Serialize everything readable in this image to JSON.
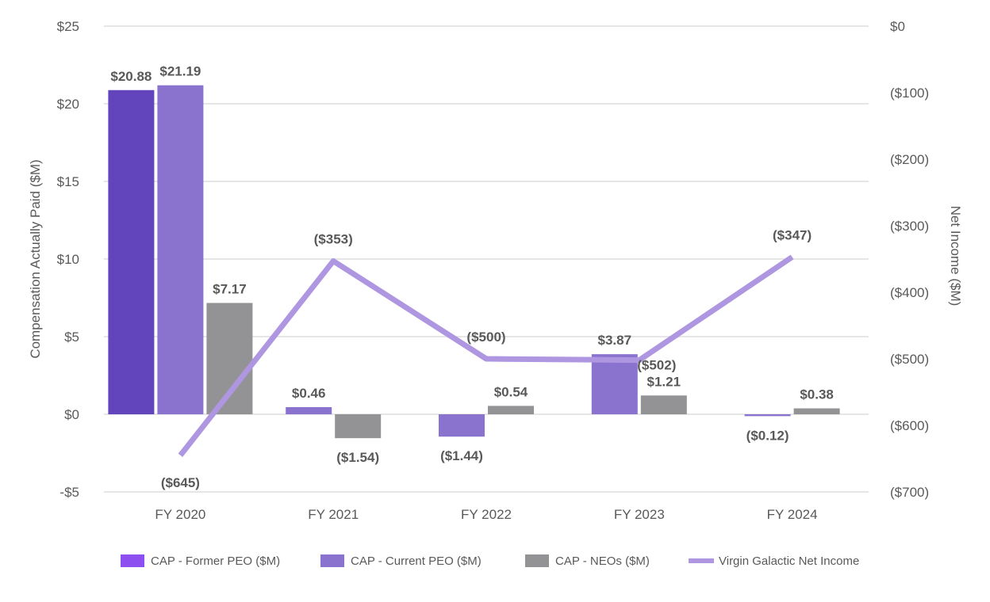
{
  "chart_data": {
    "type": "bar",
    "categories": [
      "FY 2020",
      "FY 2021",
      "FY 2022",
      "FY 2023",
      "FY 2024"
    ],
    "ylabel": "Compensation Actually Paid ($M)",
    "y2label": "Net Income ($M)",
    "ylim": [
      -5,
      25
    ],
    "y2lim": [
      -700,
      0
    ],
    "yticks": [
      {
        "value": 25,
        "label": "$25"
      },
      {
        "value": 20,
        "label": "$20"
      },
      {
        "value": 15,
        "label": "$15"
      },
      {
        "value": 10,
        "label": "$10"
      },
      {
        "value": 5,
        "label": "$5"
      },
      {
        "value": 0,
        "label": "$0"
      },
      {
        "value": -5,
        "label": "-$5"
      }
    ],
    "y2ticks": [
      {
        "value": 0,
        "label": "$0"
      },
      {
        "value": -100,
        "label": "($100)"
      },
      {
        "value": -200,
        "label": "($200)"
      },
      {
        "value": -300,
        "label": "($300)"
      },
      {
        "value": -400,
        "label": "($400)"
      },
      {
        "value": -500,
        "label": "($500)"
      },
      {
        "value": -600,
        "label": "($600)"
      },
      {
        "value": -700,
        "label": "($700)"
      }
    ],
    "series": [
      {
        "name": "CAP - Former PEO ($M)",
        "kind": "bar",
        "color": "#6244bc",
        "legend_color": "#8e4ff0",
        "values": [
          20.88,
          null,
          null,
          null,
          null
        ],
        "labels": [
          "$20.88",
          null,
          null,
          null,
          null
        ]
      },
      {
        "name": "CAP - Current  PEO ($M)",
        "kind": "bar",
        "color": "#8a72cf",
        "legend_color": "#8a72cf",
        "values": [
          21.19,
          0.46,
          -1.44,
          3.87,
          -0.12
        ],
        "labels": [
          "$21.19",
          "$0.46",
          "($1.44)",
          "$3.87",
          "($0.12)"
        ]
      },
      {
        "name": "CAP - NEOs ($M)",
        "kind": "bar",
        "color": "#939396",
        "legend_color": "#939396",
        "values": [
          7.17,
          -1.54,
          0.54,
          1.21,
          0.38
        ],
        "labels": [
          "$7.17",
          "($1.54)",
          "$0.54",
          "$1.21",
          "$0.38"
        ]
      },
      {
        "name": "Virgin Galactic Net Income",
        "kind": "line",
        "axis": "secondary",
        "color": "#ae97e0",
        "values": [
          -645,
          -353,
          -500,
          -502,
          -347
        ],
        "labels": [
          "($645)",
          "($353)",
          "($500)",
          "($502)",
          "($347)"
        ]
      }
    ],
    "legend_position": "bottom"
  }
}
